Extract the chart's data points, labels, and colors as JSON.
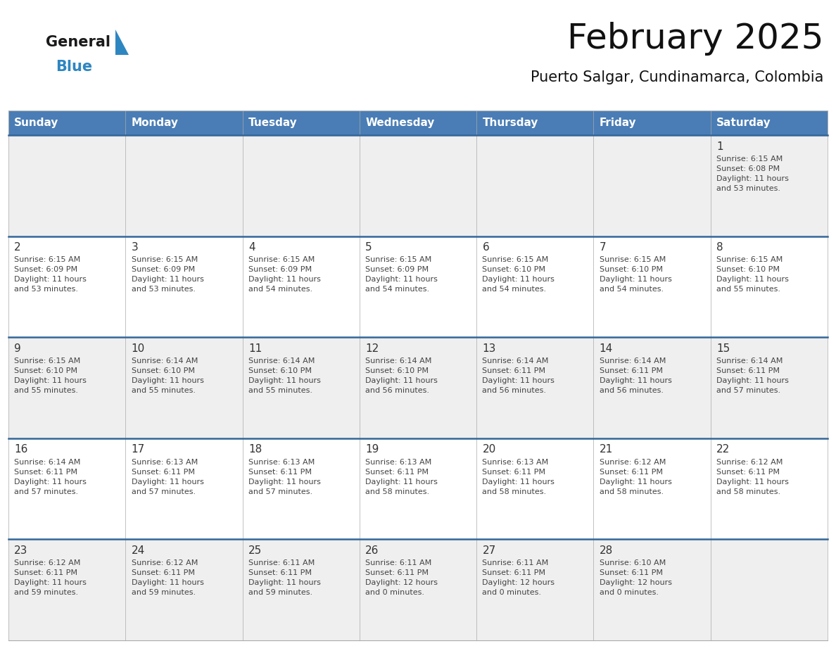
{
  "title": "February 2025",
  "subtitle": "Puerto Salgar, Cundinamarca, Colombia",
  "days_of_week": [
    "Sunday",
    "Monday",
    "Tuesday",
    "Wednesday",
    "Thursday",
    "Friday",
    "Saturday"
  ],
  "header_bg": "#4A7DB5",
  "header_text": "#FFFFFF",
  "row_bg_light": "#EFEFEF",
  "row_bg_white": "#FFFFFF",
  "cell_text_color": "#333333",
  "info_text_color": "#444444",
  "separator_color": "#336699",
  "title_color": "#111111",
  "subtitle_color": "#111111",
  "logo_general_color": "#1A1A1A",
  "logo_blue_color": "#2E86C1",
  "logo_tri_color": "#2E86C1",
  "weeks": [
    {
      "days": [
        {
          "day": null,
          "info": null
        },
        {
          "day": null,
          "info": null
        },
        {
          "day": null,
          "info": null
        },
        {
          "day": null,
          "info": null
        },
        {
          "day": null,
          "info": null
        },
        {
          "day": null,
          "info": null
        },
        {
          "day": "1",
          "info": "Sunrise: 6:15 AM\nSunset: 6:08 PM\nDaylight: 11 hours\nand 53 minutes."
        }
      ]
    },
    {
      "days": [
        {
          "day": "2",
          "info": "Sunrise: 6:15 AM\nSunset: 6:09 PM\nDaylight: 11 hours\nand 53 minutes."
        },
        {
          "day": "3",
          "info": "Sunrise: 6:15 AM\nSunset: 6:09 PM\nDaylight: 11 hours\nand 53 minutes."
        },
        {
          "day": "4",
          "info": "Sunrise: 6:15 AM\nSunset: 6:09 PM\nDaylight: 11 hours\nand 54 minutes."
        },
        {
          "day": "5",
          "info": "Sunrise: 6:15 AM\nSunset: 6:09 PM\nDaylight: 11 hours\nand 54 minutes."
        },
        {
          "day": "6",
          "info": "Sunrise: 6:15 AM\nSunset: 6:10 PM\nDaylight: 11 hours\nand 54 minutes."
        },
        {
          "day": "7",
          "info": "Sunrise: 6:15 AM\nSunset: 6:10 PM\nDaylight: 11 hours\nand 54 minutes."
        },
        {
          "day": "8",
          "info": "Sunrise: 6:15 AM\nSunset: 6:10 PM\nDaylight: 11 hours\nand 55 minutes."
        }
      ]
    },
    {
      "days": [
        {
          "day": "9",
          "info": "Sunrise: 6:15 AM\nSunset: 6:10 PM\nDaylight: 11 hours\nand 55 minutes."
        },
        {
          "day": "10",
          "info": "Sunrise: 6:14 AM\nSunset: 6:10 PM\nDaylight: 11 hours\nand 55 minutes."
        },
        {
          "day": "11",
          "info": "Sunrise: 6:14 AM\nSunset: 6:10 PM\nDaylight: 11 hours\nand 55 minutes."
        },
        {
          "day": "12",
          "info": "Sunrise: 6:14 AM\nSunset: 6:10 PM\nDaylight: 11 hours\nand 56 minutes."
        },
        {
          "day": "13",
          "info": "Sunrise: 6:14 AM\nSunset: 6:11 PM\nDaylight: 11 hours\nand 56 minutes."
        },
        {
          "day": "14",
          "info": "Sunrise: 6:14 AM\nSunset: 6:11 PM\nDaylight: 11 hours\nand 56 minutes."
        },
        {
          "day": "15",
          "info": "Sunrise: 6:14 AM\nSunset: 6:11 PM\nDaylight: 11 hours\nand 57 minutes."
        }
      ]
    },
    {
      "days": [
        {
          "day": "16",
          "info": "Sunrise: 6:14 AM\nSunset: 6:11 PM\nDaylight: 11 hours\nand 57 minutes."
        },
        {
          "day": "17",
          "info": "Sunrise: 6:13 AM\nSunset: 6:11 PM\nDaylight: 11 hours\nand 57 minutes."
        },
        {
          "day": "18",
          "info": "Sunrise: 6:13 AM\nSunset: 6:11 PM\nDaylight: 11 hours\nand 57 minutes."
        },
        {
          "day": "19",
          "info": "Sunrise: 6:13 AM\nSunset: 6:11 PM\nDaylight: 11 hours\nand 58 minutes."
        },
        {
          "day": "20",
          "info": "Sunrise: 6:13 AM\nSunset: 6:11 PM\nDaylight: 11 hours\nand 58 minutes."
        },
        {
          "day": "21",
          "info": "Sunrise: 6:12 AM\nSunset: 6:11 PM\nDaylight: 11 hours\nand 58 minutes."
        },
        {
          "day": "22",
          "info": "Sunrise: 6:12 AM\nSunset: 6:11 PM\nDaylight: 11 hours\nand 58 minutes."
        }
      ]
    },
    {
      "days": [
        {
          "day": "23",
          "info": "Sunrise: 6:12 AM\nSunset: 6:11 PM\nDaylight: 11 hours\nand 59 minutes."
        },
        {
          "day": "24",
          "info": "Sunrise: 6:12 AM\nSunset: 6:11 PM\nDaylight: 11 hours\nand 59 minutes."
        },
        {
          "day": "25",
          "info": "Sunrise: 6:11 AM\nSunset: 6:11 PM\nDaylight: 11 hours\nand 59 minutes."
        },
        {
          "day": "26",
          "info": "Sunrise: 6:11 AM\nSunset: 6:11 PM\nDaylight: 12 hours\nand 0 minutes."
        },
        {
          "day": "27",
          "info": "Sunrise: 6:11 AM\nSunset: 6:11 PM\nDaylight: 12 hours\nand 0 minutes."
        },
        {
          "day": "28",
          "info": "Sunrise: 6:10 AM\nSunset: 6:11 PM\nDaylight: 12 hours\nand 0 minutes."
        },
        {
          "day": null,
          "info": null
        }
      ]
    }
  ],
  "fig_width": 11.88,
  "fig_height": 9.18,
  "dpi": 100
}
